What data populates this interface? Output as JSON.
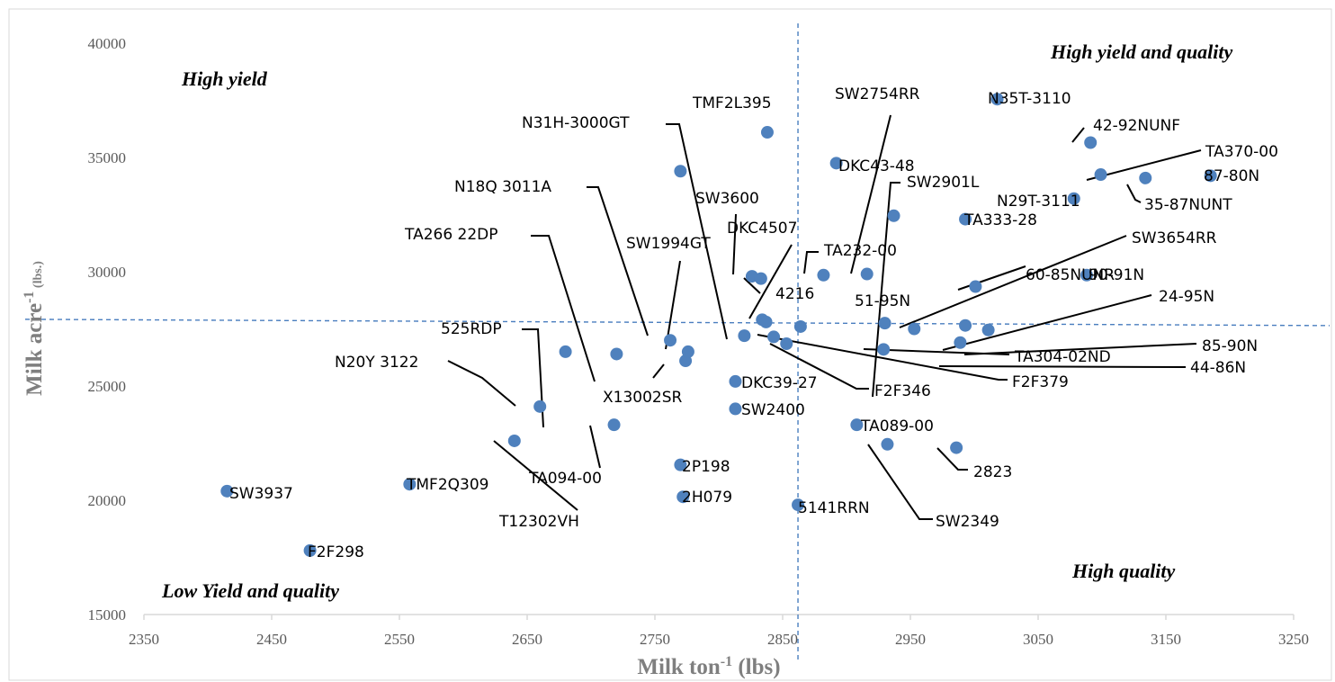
{
  "chart_data": {
    "type": "scatter",
    "xlabel": "Milk ton",
    "xlabel_sup": "-1",
    "xlabel_suffix": " (lbs)",
    "ylabel": "Milk acre",
    "ylabel_sup": "-1",
    "ylabel_suffix": " (lbs.)",
    "xlim": [
      2350,
      3250
    ],
    "ylim": [
      15000,
      40000
    ],
    "x_ticks": [
      "2350",
      "2450",
      "2550",
      "2650",
      "2750",
      "2850",
      "2950",
      "3050",
      "3150",
      "3250"
    ],
    "y_ticks": [
      "15000",
      "20000",
      "25000",
      "30000",
      "35000",
      "40000"
    ],
    "reference_lines": {
      "x": 2862,
      "y": 27800
    },
    "quadrant_labels": {
      "top_left": "High yield",
      "top_right": "High yield and quality",
      "bottom_left": "Low Yield and quality",
      "bottom_right": "High quality"
    },
    "point_color": "#4f81bd",
    "reference_line_color": "#4a7ebf",
    "points": [
      {
        "label": "SW3937",
        "x": 2415,
        "y": 20400
      },
      {
        "label": "F2F298",
        "x": 2480,
        "y": 17800
      },
      {
        "label": "TMF2Q309",
        "x": 2558,
        "y": 20700
      },
      {
        "label": "T12302VH",
        "x": 2640,
        "y": 22600
      },
      {
        "label": "N20Y 3122",
        "x": 2660,
        "y": 24100
      },
      {
        "label": "525RDP",
        "x": 2680,
        "y": 26500
      },
      {
        "label": "TA094-00",
        "x": 2718,
        "y": 23300
      },
      {
        "label": "TA266 22DP",
        "x": 2720,
        "y": 26400
      },
      {
        "label": "N18Q 3011A",
        "x": 2762,
        "y": 27000
      },
      {
        "label": "",
        "x": 2770,
        "y": 34400
      },
      {
        "label": "2P198",
        "x": 2770,
        "y": 21550
      },
      {
        "label": "2H079",
        "x": 2772,
        "y": 20150
      },
      {
        "label": "X13002SR",
        "x": 2774,
        "y": 26100
      },
      {
        "label": "SW1994GT",
        "x": 2776,
        "y": 26500
      },
      {
        "label": "DKC39-27",
        "x": 2813,
        "y": 25200
      },
      {
        "label": "SW2400",
        "x": 2813,
        "y": 24000
      },
      {
        "label": "N31H-3000GT",
        "x": 2820,
        "y": 27200
      },
      {
        "label": "SW3600",
        "x": 2826,
        "y": 29800
      },
      {
        "label": "",
        "x": 2833,
        "y": 29700
      },
      {
        "label": "",
        "x": 2834,
        "y": 27900
      },
      {
        "label": "DKC4507",
        "x": 2837,
        "y": 27800
      },
      {
        "label": "TMF2L395",
        "x": 2838,
        "y": 36100
      },
      {
        "label": "F2F379",
        "x": 2843,
        "y": 27150
      },
      {
        "label": "F2F346",
        "x": 2853,
        "y": 26850
      },
      {
        "label": "5141RRN",
        "x": 2862,
        "y": 19800
      },
      {
        "label": "4216",
        "x": 2864,
        "y": 27600
      },
      {
        "label": "TA232-00",
        "x": 2882,
        "y": 29850
      },
      {
        "label": "DKC43-48",
        "x": 2892,
        "y": 34750
      },
      {
        "label": "TA089-00",
        "x": 2908,
        "y": 23300
      },
      {
        "label": "SW2754RR",
        "x": 2916,
        "y": 29900
      },
      {
        "label": "TA304-02ND",
        "x": 2929,
        "y": 26600
      },
      {
        "label": "51-95N",
        "x": 2930,
        "y": 27750
      },
      {
        "label": "SW2349",
        "x": 2932,
        "y": 22450
      },
      {
        "label": "SW2901L",
        "x": 2937,
        "y": 32450
      },
      {
        "label": "SW3654RR",
        "x": 2953,
        "y": 27500
      },
      {
        "label": "2823",
        "x": 2986,
        "y": 22300
      },
      {
        "label": "44-86N",
        "x": 2989,
        "y": 26900
      },
      {
        "label": "24-95N",
        "x": 2993,
        "y": 27650
      },
      {
        "label": "TA333-28",
        "x": 2993,
        "y": 32300
      },
      {
        "label": "60-85NUNR",
        "x": 3001,
        "y": 29350
      },
      {
        "label": "85-90N",
        "x": 3011,
        "y": 27450
      },
      {
        "label": "N35T-3110",
        "x": 3018,
        "y": 37550
      },
      {
        "label": "N29T-3111",
        "x": 3078,
        "y": 33200
      },
      {
        "label": "90-91N",
        "x": 3088,
        "y": 29850
      },
      {
        "label": "42-92NUNF",
        "x": 3091,
        "y": 35650
      },
      {
        "label": "TA370-00",
        "x": 3099,
        "y": 34250
      },
      {
        "label": "35-87NUNT",
        "x": 3134,
        "y": 34100
      },
      {
        "label": "87-80N",
        "x": 3185,
        "y": 34200
      }
    ]
  }
}
